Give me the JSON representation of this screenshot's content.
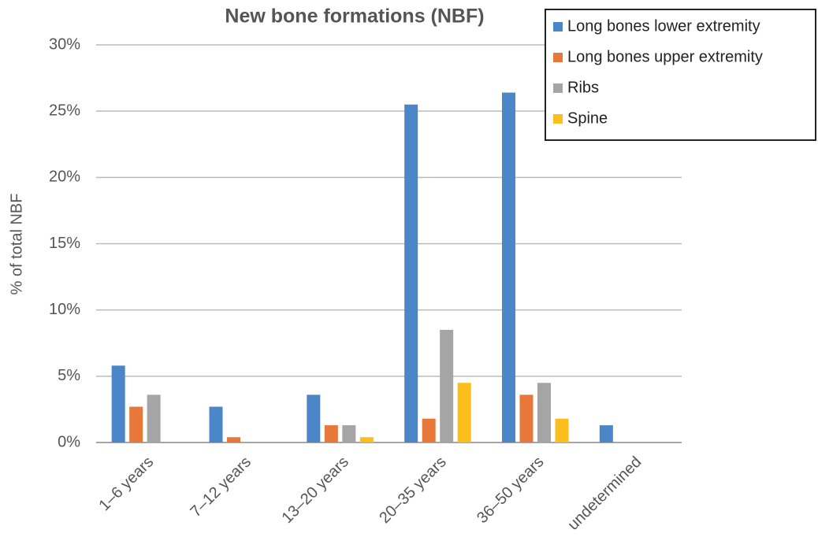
{
  "chart_data": {
    "type": "bar",
    "title": "New bone formations (NBF)",
    "y_label": "% of total NBF",
    "categories": [
      "1–6 years",
      "7–12 years",
      "13–20 years",
      "20–35 years",
      "36–50 years",
      "undetermined"
    ],
    "series": [
      {
        "name": "Long bones lower extremity",
        "color": "#4a86c8",
        "values": [
          5.8,
          2.7,
          3.6,
          25.5,
          26.4,
          1.3
        ]
      },
      {
        "name": "Long bones upper extremity",
        "color": "#e8773a",
        "values": [
          2.7,
          0.4,
          1.3,
          1.8,
          3.6,
          0
        ]
      },
      {
        "name": "Ribs",
        "color": "#a5a5a5",
        "values": [
          3.6,
          0,
          1.3,
          8.5,
          4.5,
          0
        ]
      },
      {
        "name": "Spine",
        "color": "#fbbe1a",
        "values": [
          0,
          0,
          0.4,
          4.5,
          1.8,
          0
        ]
      }
    ],
    "ylim": [
      0,
      30
    ],
    "yticks": [
      {
        "value": 0,
        "label": "0%"
      },
      {
        "value": 5,
        "label": "5%"
      },
      {
        "value": 10,
        "label": "10%"
      },
      {
        "value": 15,
        "label": "15%"
      },
      {
        "value": 20,
        "label": "20%"
      },
      {
        "value": 25,
        "label": "25%"
      },
      {
        "value": 30,
        "label": "30%"
      }
    ],
    "grid": true,
    "legend": "top-right"
  }
}
